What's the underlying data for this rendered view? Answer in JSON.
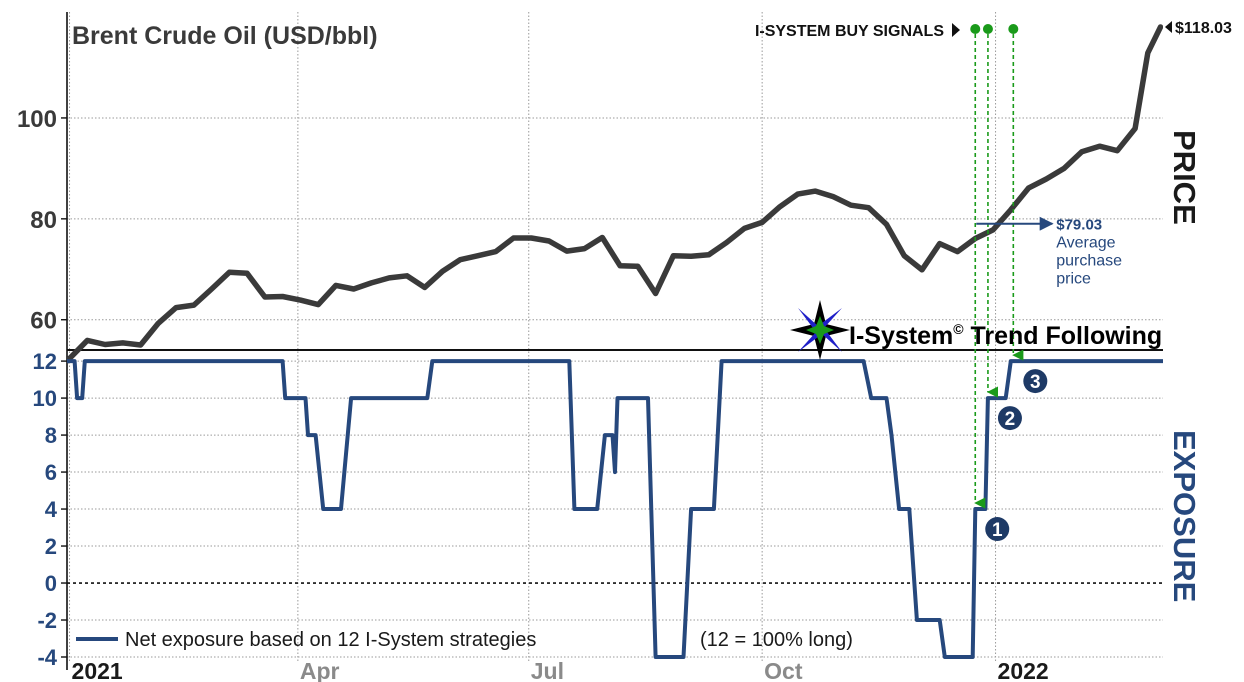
{
  "chart_data": {
    "type": "line",
    "title": "Brent Crude Oil (USD/bbl)",
    "price_axis_title": "PRICE",
    "exposure_axis_title": "EXPOSURE",
    "x_range": [
      "2020-12-31",
      "2022-03-08"
    ],
    "x_ticks": [
      {
        "date": "2021-01-01",
        "label": "2021",
        "color": "#1a1a1a"
      },
      {
        "date": "2021-04-01",
        "label": "Apr",
        "color": "#8a8a8a"
      },
      {
        "date": "2021-07-01",
        "label": "Jul",
        "color": "#8a8a8a"
      },
      {
        "date": "2021-10-01",
        "label": "Oct",
        "color": "#8a8a8a"
      },
      {
        "date": "2022-01-01",
        "label": "2022",
        "color": "#1a1a1a"
      }
    ],
    "price_axis": {
      "ylim": [
        54,
        121
      ],
      "ticks": [
        60,
        80,
        100
      ]
    },
    "exposure_axis": {
      "ylim": [
        -4,
        12.6
      ],
      "ticks": [
        12,
        10,
        8,
        6,
        4,
        2,
        0,
        -2,
        -4
      ]
    },
    "price_series": {
      "name": "Brent Crude Oil",
      "color": "#3a3a3a",
      "points": [
        [
          "2020-12-31",
          51.8
        ],
        [
          "2021-01-08",
          55.9
        ],
        [
          "2021-01-15",
          55.1
        ],
        [
          "2021-01-22",
          55.4
        ],
        [
          "2021-01-29",
          55.0
        ],
        [
          "2021-02-05",
          59.3
        ],
        [
          "2021-02-12",
          62.4
        ],
        [
          "2021-02-19",
          62.9
        ],
        [
          "2021-02-26",
          66.1
        ],
        [
          "2021-03-05",
          69.4
        ],
        [
          "2021-03-12",
          69.2
        ],
        [
          "2021-03-19",
          64.5
        ],
        [
          "2021-03-26",
          64.6
        ],
        [
          "2021-04-02",
          63.9
        ],
        [
          "2021-04-09",
          63.0
        ],
        [
          "2021-04-16",
          66.8
        ],
        [
          "2021-04-23",
          66.1
        ],
        [
          "2021-04-30",
          67.3
        ],
        [
          "2021-05-07",
          68.3
        ],
        [
          "2021-05-14",
          68.7
        ],
        [
          "2021-05-21",
          66.4
        ],
        [
          "2021-05-28",
          69.6
        ],
        [
          "2021-06-04",
          71.9
        ],
        [
          "2021-06-11",
          72.7
        ],
        [
          "2021-06-18",
          73.5
        ],
        [
          "2021-06-25",
          76.2
        ],
        [
          "2021-07-02",
          76.2
        ],
        [
          "2021-07-09",
          75.6
        ],
        [
          "2021-07-16",
          73.6
        ],
        [
          "2021-07-23",
          74.1
        ],
        [
          "2021-07-30",
          76.3
        ],
        [
          "2021-08-06",
          70.7
        ],
        [
          "2021-08-13",
          70.6
        ],
        [
          "2021-08-20",
          65.2
        ],
        [
          "2021-08-27",
          72.7
        ],
        [
          "2021-09-03",
          72.6
        ],
        [
          "2021-09-10",
          72.9
        ],
        [
          "2021-09-17",
          75.3
        ],
        [
          "2021-09-24",
          78.1
        ],
        [
          "2021-10-01",
          79.3
        ],
        [
          "2021-10-08",
          82.4
        ],
        [
          "2021-10-15",
          84.9
        ],
        [
          "2021-10-22",
          85.5
        ],
        [
          "2021-10-29",
          84.4
        ],
        [
          "2021-11-05",
          82.7
        ],
        [
          "2021-11-12",
          82.2
        ],
        [
          "2021-11-19",
          78.9
        ],
        [
          "2021-11-26",
          72.7
        ],
        [
          "2021-12-03",
          69.9
        ],
        [
          "2021-12-10",
          75.1
        ],
        [
          "2021-12-17",
          73.5
        ],
        [
          "2021-12-24",
          76.1
        ],
        [
          "2021-12-31",
          77.8
        ],
        [
          "2022-01-07",
          81.8
        ],
        [
          "2022-01-14",
          86.1
        ],
        [
          "2022-01-21",
          87.9
        ],
        [
          "2022-01-28",
          90.0
        ],
        [
          "2022-02-04",
          93.3
        ],
        [
          "2022-02-11",
          94.4
        ],
        [
          "2022-02-18",
          93.5
        ],
        [
          "2022-02-25",
          97.9
        ],
        [
          "2022-03-02",
          112.9
        ],
        [
          "2022-03-07",
          118.03
        ]
      ]
    },
    "exposure_series": {
      "name": "Net exposure based on 12 I-System strategies",
      "color": "#26487d",
      "points": [
        [
          "2020-12-31",
          12
        ],
        [
          "2021-01-03",
          12
        ],
        [
          "2021-01-04",
          10
        ],
        [
          "2021-01-06",
          10
        ],
        [
          "2021-01-07",
          12
        ],
        [
          "2021-03-26",
          12
        ],
        [
          "2021-03-27",
          10
        ],
        [
          "2021-04-04",
          10
        ],
        [
          "2021-04-05",
          8
        ],
        [
          "2021-04-08",
          8
        ],
        [
          "2021-04-11",
          4
        ],
        [
          "2021-04-18",
          4
        ],
        [
          "2021-04-22",
          10
        ],
        [
          "2021-05-22",
          10
        ],
        [
          "2021-05-24",
          12
        ],
        [
          "2021-07-17",
          12
        ],
        [
          "2021-07-19",
          4
        ],
        [
          "2021-07-28",
          4
        ],
        [
          "2021-07-31",
          8
        ],
        [
          "2021-08-03",
          8
        ],
        [
          "2021-08-04",
          6
        ],
        [
          "2021-08-05",
          10
        ],
        [
          "2021-08-17",
          10
        ],
        [
          "2021-08-20",
          -4
        ],
        [
          "2021-08-31",
          -4
        ],
        [
          "2021-09-03",
          4
        ],
        [
          "2021-09-12",
          4
        ],
        [
          "2021-09-15",
          12
        ],
        [
          "2021-11-10",
          12
        ],
        [
          "2021-11-13",
          10
        ],
        [
          "2021-11-19",
          10
        ],
        [
          "2021-11-21",
          8
        ],
        [
          "2021-11-24",
          4
        ],
        [
          "2021-11-28",
          4
        ],
        [
          "2021-12-01",
          -2
        ],
        [
          "2021-12-10",
          -2
        ],
        [
          "2021-12-12",
          -4
        ],
        [
          "2021-12-23",
          -4
        ],
        [
          "2021-12-24",
          4
        ],
        [
          "2021-12-28",
          4
        ],
        [
          "2021-12-29",
          10
        ],
        [
          "2022-01-05",
          10
        ],
        [
          "2022-01-07",
          12
        ],
        [
          "2022-03-08",
          12
        ]
      ]
    },
    "zero_line": {
      "value": 0,
      "style": "dotted"
    },
    "buy_signals": {
      "label": "I-SYSTEM BUY SIGNALS",
      "color": "#1a9a1a",
      "signals": [
        {
          "date": "2021-12-24",
          "exposure": 4,
          "number": "1"
        },
        {
          "date": "2021-12-29",
          "exposure": 10,
          "number": "2"
        },
        {
          "date": "2022-01-08",
          "exposure": 12,
          "number": "3"
        }
      ]
    },
    "last_price_label": "$118.03",
    "average_purchase": {
      "date": "2021-12-24",
      "price": 79.03,
      "value_label": "$79.03",
      "text_lines": [
        "Average",
        "purchase",
        "price"
      ],
      "color": "#26487d"
    },
    "brand": {
      "name": "I-System",
      "copyright": "©",
      "suffix": " Trend Following"
    },
    "legend": {
      "label": "Net exposure based on 12 I-System strategies",
      "note": "(12 = 100% long)",
      "placement": "bottom-left"
    },
    "grid": true
  }
}
